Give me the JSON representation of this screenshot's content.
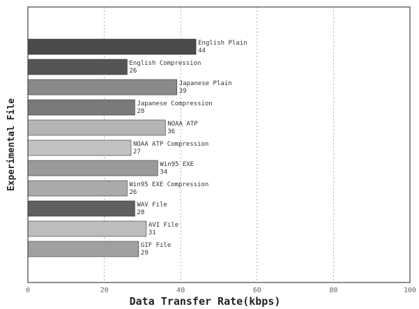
{
  "chart_data": {
    "type": "bar",
    "orientation": "horizontal",
    "title": "",
    "xlabel": "Data Transfer Rate(kbps)",
    "ylabel": "Experimental File",
    "xlim": [
      0,
      100
    ],
    "xticks": [
      "0",
      "20",
      "40",
      "60",
      "80",
      "100"
    ],
    "grid": true,
    "legend": "none",
    "bar_color": "#777777",
    "categories": [
      "English Plain",
      "English Compression",
      "Japanese Plain",
      "Japanese Compression",
      "NOAA ATP",
      "NOAA ATP Compression",
      "Win95 EXE",
      "Win95 EXE Compression",
      "WAV File",
      "AVI File",
      "GIF File"
    ],
    "values": [
      44,
      26,
      39,
      28,
      36,
      27,
      34,
      26,
      28,
      31,
      29
    ],
    "value_labels": [
      "44",
      "26",
      "39",
      "28",
      "36",
      "27",
      "34",
      "26",
      "28",
      "31",
      "29"
    ]
  }
}
